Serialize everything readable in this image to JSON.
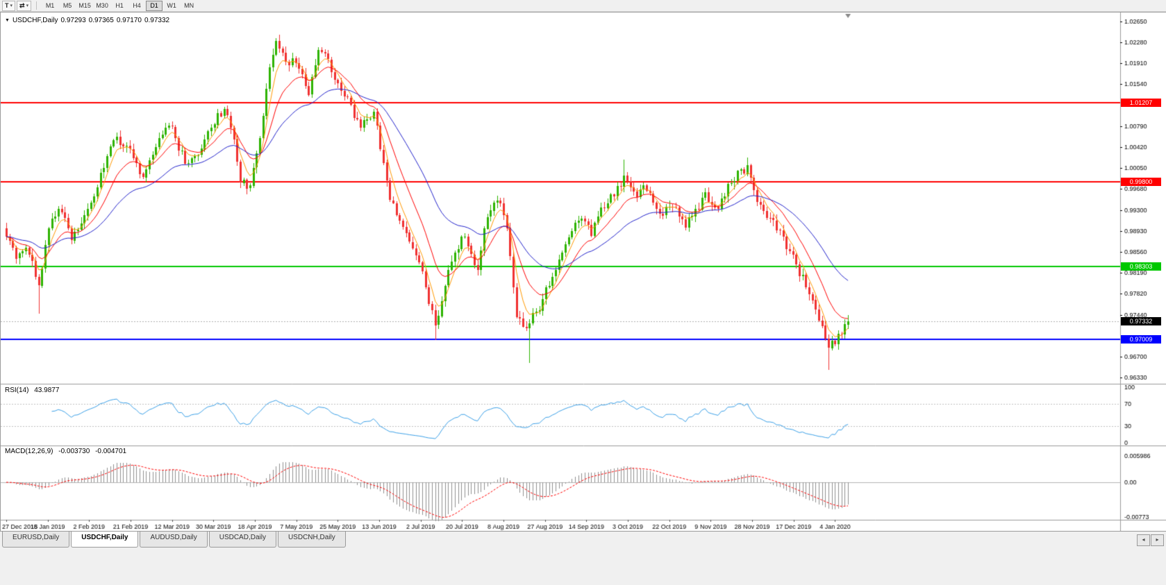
{
  "toolbar": {
    "tools": [
      {
        "name": "text-tool",
        "glyph": "T",
        "has_dropdown": true
      },
      {
        "name": "objects-tool",
        "glyph": "⇄",
        "has_dropdown": true
      }
    ],
    "timeframes": [
      {
        "label": "M1"
      },
      {
        "label": "M5"
      },
      {
        "label": "M15"
      },
      {
        "label": "M30"
      },
      {
        "label": "H1"
      },
      {
        "label": "H4"
      },
      {
        "label": "D1",
        "active": true
      },
      {
        "label": "W1"
      },
      {
        "label": "MN"
      }
    ]
  },
  "chart": {
    "collapse_icon": "▼",
    "symbol_title": "USDCHF,Daily",
    "open": "0.97293",
    "high": "0.97365",
    "low": "0.97170",
    "close": "0.97332",
    "price_ticks": [
      "1.02650",
      "1.02280",
      "1.01910",
      "1.01540",
      "1.00790",
      "1.00420",
      "1.00050",
      "0.99680",
      "0.99300",
      "0.98930",
      "0.98560",
      "0.98190",
      "0.97820",
      "0.97440",
      "0.96700",
      "0.96330"
    ],
    "hlines": [
      {
        "price": 1.01207,
        "label": "1.01207",
        "color": "#ff0000"
      },
      {
        "price": 0.998,
        "label": "0.99800",
        "color": "#ff0000"
      },
      {
        "price": 0.98303,
        "label": "0.98303",
        "color": "#00c800"
      },
      {
        "price": 0.97009,
        "label": "0.97009",
        "color": "#0000ff"
      }
    ],
    "current_price": {
      "value": 0.97332,
      "label": "0.97332",
      "badge_color": "#000000"
    },
    "colors": {
      "bull": "#2db300",
      "bear": "#f03030",
      "ma_fast": "#ff9900",
      "ma_mid": "#ff0000",
      "ma_slow": "#2222cc",
      "background": "#ffffff",
      "axis_text": "#000000",
      "separator": "#9a9a9a",
      "current_price_line": "#b0b0b0"
    }
  },
  "rsi_panel": {
    "name": "RSI(14)",
    "value": "43.9877",
    "ticks": [
      "100",
      "70",
      "30",
      "0"
    ],
    "levels": [
      70,
      30
    ],
    "line_color": "#3aa0e8"
  },
  "macd_panel": {
    "name": "MACD(12,26,9)",
    "macd_value": "-0.003730",
    "signal_value": "-0.004701",
    "ticks": [
      "0.005986",
      "0.00",
      "-0.00773"
    ],
    "histogram_color": "#909090",
    "signal_color": "#ff0000"
  },
  "tabs": [
    {
      "label": "EURUSD,Daily"
    },
    {
      "label": "USDCHF,Daily",
      "active": true
    },
    {
      "label": "AUDUSD,Daily"
    },
    {
      "label": "USDCAD,Daily"
    },
    {
      "label": "USDCNH,Daily"
    }
  ],
  "tab_scroll": {
    "left_icon": "◂",
    "right_icon": "▸"
  },
  "chart_data": {
    "type": "candlestick",
    "symbol": "USDCHF",
    "timeframe": "Daily",
    "title": "USDCHF,Daily 0.97293 0.97365 0.97170 0.97332",
    "price_range": [
      0.9633,
      1.0265
    ],
    "price_tick_step": 0.0037,
    "candle_count": 260,
    "seed": 20200113,
    "noise": 0.0008,
    "x_labels": [
      "27 Dec 2018",
      "15 Jan 2019",
      "2 Feb 2019",
      "21 Feb 2019",
      "12 Mar 2019",
      "30 Mar 2019",
      "18 Apr 2019",
      "7 May 2019",
      "25 May 2019",
      "13 Jun 2019",
      "2 Jul 2019",
      "20 Jul 2019",
      "8 Aug 2019",
      "27 Aug 2019",
      "14 Sep 2019",
      "3 Oct 2019",
      "22 Oct 2019",
      "9 Nov 2019",
      "28 Nov 2019",
      "17 Dec 2019",
      "4 Jan 2020"
    ],
    "price_anchors": [
      [
        0,
        0.988
      ],
      [
        3,
        0.9848
      ],
      [
        6,
        0.9868
      ],
      [
        10,
        0.98
      ],
      [
        13,
        0.99
      ],
      [
        16,
        0.9935
      ],
      [
        20,
        0.9884
      ],
      [
        24,
        0.9914
      ],
      [
        27,
        0.9958
      ],
      [
        31,
        1.0028
      ],
      [
        34,
        1.0056
      ],
      [
        38,
        1.0034
      ],
      [
        42,
        0.999
      ],
      [
        46,
        1.004
      ],
      [
        50,
        1.0086
      ],
      [
        53,
        1.004
      ],
      [
        56,
        1.0008
      ],
      [
        60,
        1.004
      ],
      [
        63,
        1.0076
      ],
      [
        67,
        1.0114
      ],
      [
        70,
        1.0058
      ],
      [
        72,
        0.9984
      ],
      [
        75,
        0.9972
      ],
      [
        78,
        1.006
      ],
      [
        81,
        1.018
      ],
      [
        83,
        1.0226
      ],
      [
        86,
        1.0196
      ],
      [
        90,
        1.0188
      ],
      [
        93,
        1.014
      ],
      [
        96,
        1.0212
      ],
      [
        99,
        1.0196
      ],
      [
        102,
        1.015
      ],
      [
        105,
        1.0124
      ],
      [
        109,
        1.0078
      ],
      [
        113,
        1.0104
      ],
      [
        116,
        1.0008
      ],
      [
        118,
        0.995
      ],
      [
        121,
        0.9918
      ],
      [
        124,
        0.988
      ],
      [
        127,
        0.9836
      ],
      [
        130,
        0.977
      ],
      [
        132,
        0.9724
      ],
      [
        135,
        0.9802
      ],
      [
        138,
        0.9856
      ],
      [
        141,
        0.9886
      ],
      [
        145,
        0.9824
      ],
      [
        148,
        0.9924
      ],
      [
        151,
        0.995
      ],
      [
        154,
        0.9904
      ],
      [
        157,
        0.974
      ],
      [
        160,
        0.9726
      ],
      [
        164,
        0.976
      ],
      [
        167,
        0.98
      ],
      [
        170,
        0.9846
      ],
      [
        174,
        0.989
      ],
      [
        177,
        0.992
      ],
      [
        180,
        0.9886
      ],
      [
        183,
        0.993
      ],
      [
        186,
        0.9954
      ],
      [
        190,
        0.9986
      ],
      [
        193,
        0.9956
      ],
      [
        196,
        0.997
      ],
      [
        199,
        0.9944
      ],
      [
        202,
        0.992
      ],
      [
        205,
        0.9944
      ],
      [
        209,
        0.9906
      ],
      [
        212,
        0.993
      ],
      [
        215,
        0.9956
      ],
      [
        218,
        0.993
      ],
      [
        222,
        0.997
      ],
      [
        225,
        0.9996
      ],
      [
        228,
        1.0006
      ],
      [
        231,
        0.9946
      ],
      [
        234,
        0.992
      ],
      [
        237,
        0.9896
      ],
      [
        241,
        0.9856
      ],
      [
        244,
        0.982
      ],
      [
        247,
        0.9786
      ],
      [
        250,
        0.9736
      ],
      [
        253,
        0.9686
      ],
      [
        255,
        0.97
      ],
      [
        257,
        0.9712
      ],
      [
        259,
        0.97332
      ]
    ],
    "wick_events": [
      [
        10,
        "low",
        0.9746
      ],
      [
        83,
        "high",
        1.0231
      ],
      [
        132,
        "low",
        0.9699
      ],
      [
        161,
        "low",
        0.9659
      ],
      [
        190,
        "high",
        1.002
      ],
      [
        228,
        "high",
        1.0024
      ],
      [
        253,
        "low",
        0.9647
      ]
    ],
    "overlays": [
      {
        "type": "ema",
        "period": 5,
        "color": "#ff9900",
        "name": "ma-fast"
      },
      {
        "type": "ema",
        "period": 13,
        "color": "#ff0000",
        "name": "ma-mid"
      },
      {
        "type": "ema",
        "period": 34,
        "color": "#2222cc",
        "name": "ma-slow"
      }
    ],
    "indicators": [
      {
        "type": "rsi",
        "period": 14,
        "last_value": 43.9877
      },
      {
        "type": "macd",
        "fast": 12,
        "slow": 26,
        "signal": 9,
        "last_macd": -0.00373,
        "last_signal": -0.004701
      }
    ]
  }
}
